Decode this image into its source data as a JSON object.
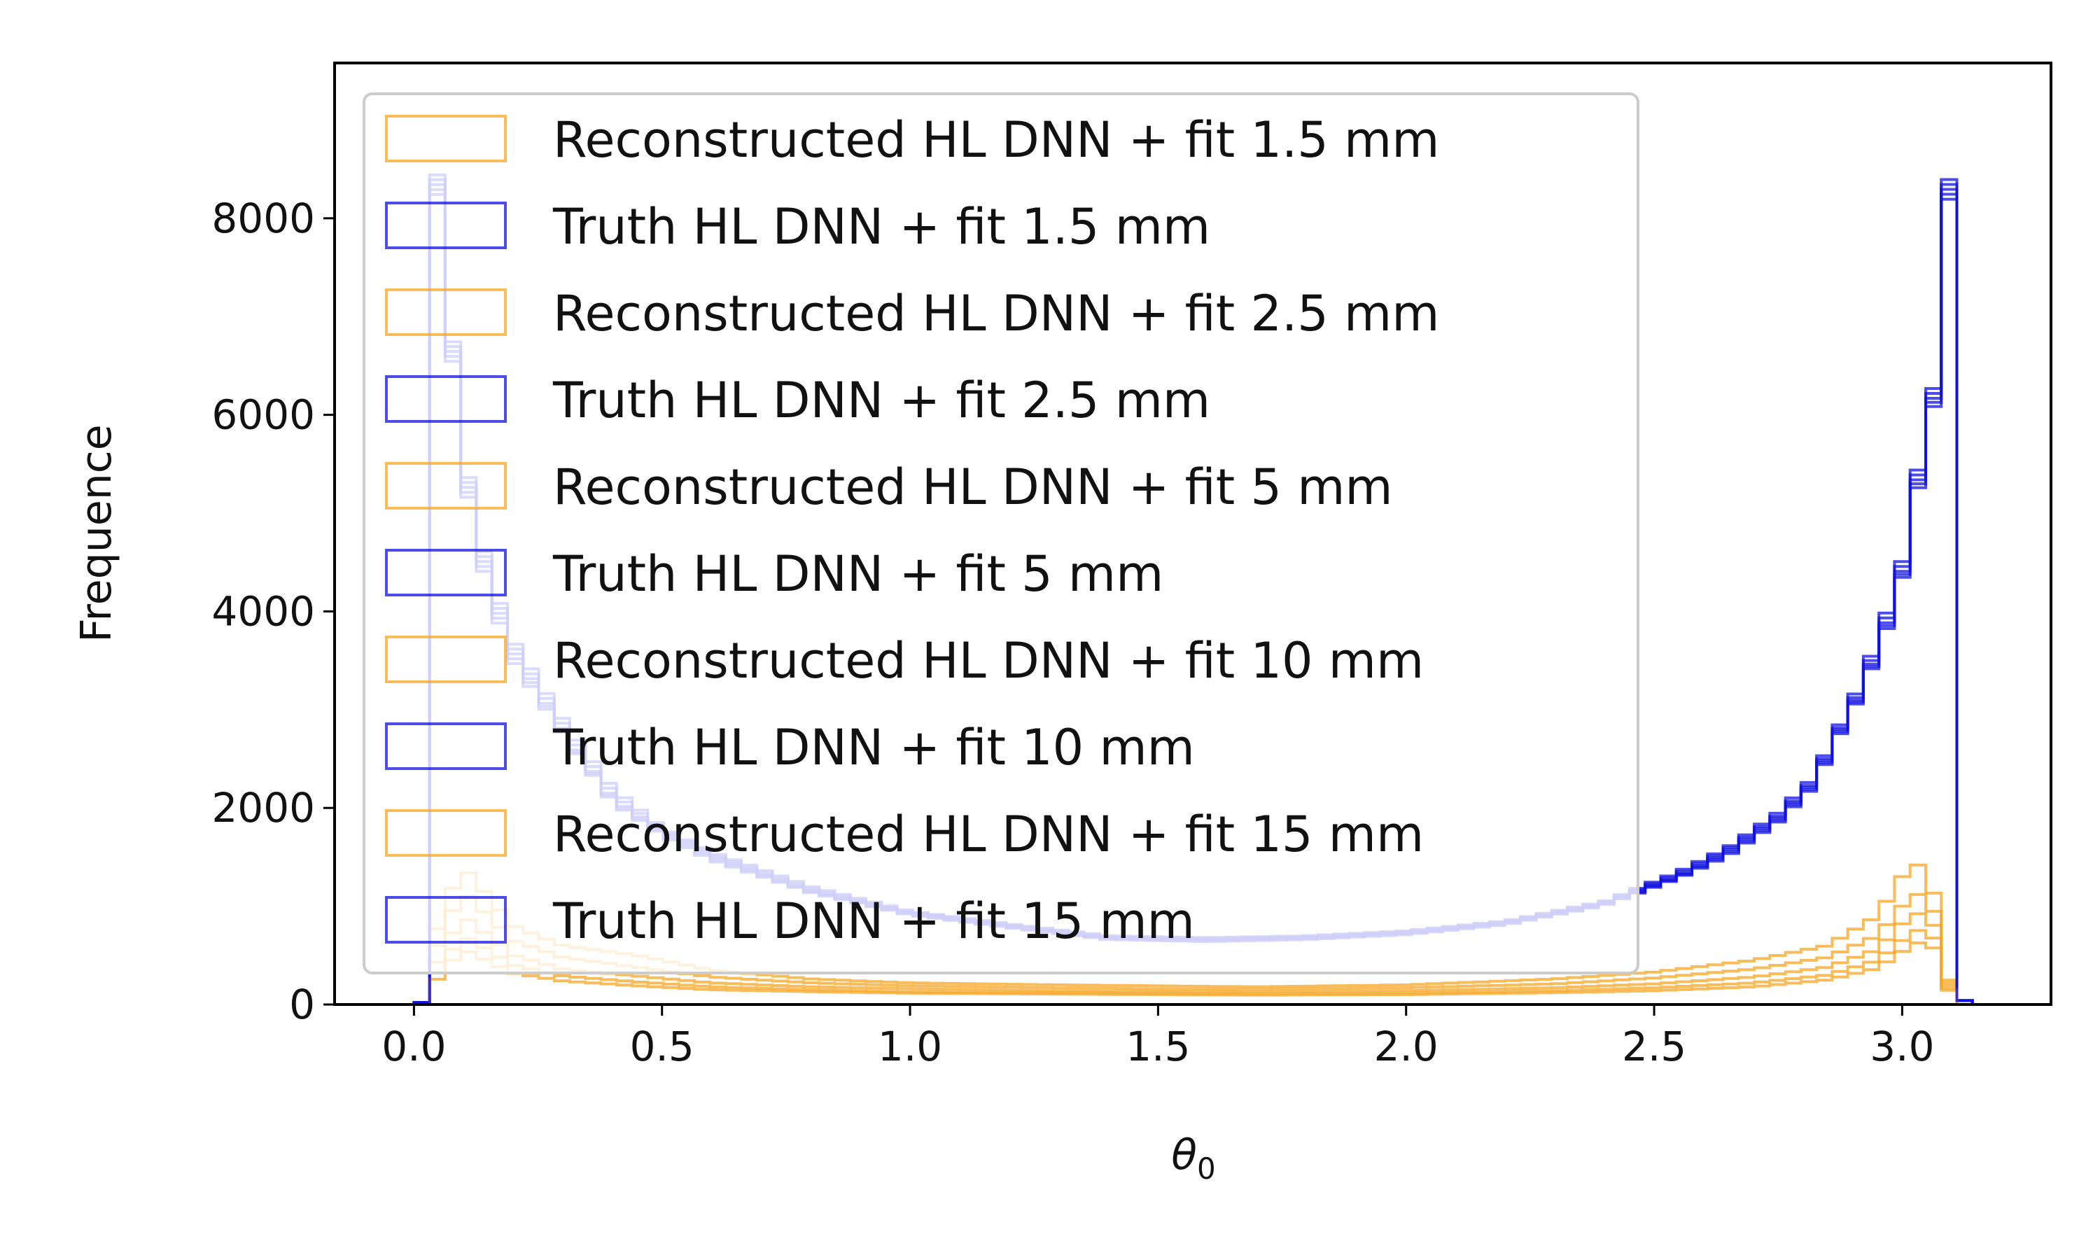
{
  "chart_data": {
    "type": "histogram",
    "title": "",
    "xlabel": "θ",
    "xlabel_sub": "0",
    "ylabel": "Frequence",
    "xlim": [
      -0.16,
      3.3
    ],
    "ylim": [
      0,
      9580
    ],
    "xticks": [
      "0.0",
      "0.5",
      "1.0",
      "1.5",
      "2.0",
      "2.5",
      "3.0"
    ],
    "yticks": [
      "0",
      "2000",
      "4000",
      "6000",
      "8000"
    ],
    "grid": false,
    "legend_position": "upper-left",
    "bin_edges_range": [
      0.0,
      3.1416
    ],
    "bin_count": 100,
    "colors": {
      "reconstructed": "#f5a623",
      "truth": "#1010e0"
    },
    "series": [
      {
        "name": "Reconstructed HL DNN + fit 1.5 mm",
        "color": "#f5a623",
        "knots": [
          [
            0.0,
            0
          ],
          [
            0.03,
            0
          ],
          [
            0.05,
            900
          ],
          [
            0.1,
            1400
          ],
          [
            0.2,
            800
          ],
          [
            0.3,
            600
          ],
          [
            0.45,
            500
          ],
          [
            0.6,
            350
          ],
          [
            0.8,
            260
          ],
          [
            1.0,
            220
          ],
          [
            1.3,
            200
          ],
          [
            1.5,
            190
          ],
          [
            1.7,
            180
          ],
          [
            2.0,
            200
          ],
          [
            2.3,
            260
          ],
          [
            2.5,
            330
          ],
          [
            2.7,
            450
          ],
          [
            2.85,
            600
          ],
          [
            2.95,
            900
          ],
          [
            3.0,
            1300
          ],
          [
            3.04,
            1450
          ],
          [
            3.08,
            900
          ],
          [
            3.1,
            0
          ],
          [
            3.1416,
            0
          ]
        ]
      },
      {
        "name": "Truth HL DNN + fit 1.5 mm",
        "color": "#1010e0",
        "knots": [
          [
            0.0,
            20
          ],
          [
            0.03,
            20
          ],
          [
            0.035,
            9100
          ],
          [
            0.07,
            7200
          ],
          [
            0.1,
            5600
          ],
          [
            0.15,
            4400
          ],
          [
            0.2,
            3700
          ],
          [
            0.3,
            2900
          ],
          [
            0.4,
            2200
          ],
          [
            0.5,
            1800
          ],
          [
            0.6,
            1550
          ],
          [
            0.8,
            1200
          ],
          [
            1.0,
            950
          ],
          [
            1.2,
            820
          ],
          [
            1.4,
            700
          ],
          [
            1.6,
            680
          ],
          [
            1.8,
            700
          ],
          [
            2.0,
            750
          ],
          [
            2.2,
            850
          ],
          [
            2.4,
            1050
          ],
          [
            2.55,
            1350
          ],
          [
            2.65,
            1600
          ],
          [
            2.75,
            1950
          ],
          [
            2.82,
            2300
          ],
          [
            2.88,
            2900
          ],
          [
            2.92,
            3300
          ],
          [
            2.97,
            4000
          ],
          [
            3.0,
            4500
          ],
          [
            3.03,
            5400
          ],
          [
            3.06,
            6100
          ],
          [
            3.08,
            7200
          ],
          [
            3.1,
            8850
          ],
          [
            3.11,
            40
          ],
          [
            3.1416,
            40
          ]
        ]
      },
      {
        "name": "Reconstructed HL DNN + fit 2.5 mm",
        "color": "#f5a623",
        "knots": [
          [
            0.0,
            0
          ],
          [
            0.03,
            0
          ],
          [
            0.05,
            700
          ],
          [
            0.1,
            1150
          ],
          [
            0.2,
            650
          ],
          [
            0.3,
            480
          ],
          [
            0.45,
            380
          ],
          [
            0.6,
            280
          ],
          [
            0.8,
            220
          ],
          [
            1.0,
            190
          ],
          [
            1.3,
            170
          ],
          [
            1.5,
            160
          ],
          [
            1.7,
            155
          ],
          [
            2.0,
            170
          ],
          [
            2.3,
            210
          ],
          [
            2.5,
            270
          ],
          [
            2.7,
            360
          ],
          [
            2.85,
            480
          ],
          [
            2.95,
            700
          ],
          [
            3.0,
            1000
          ],
          [
            3.04,
            1150
          ],
          [
            3.08,
            800
          ],
          [
            3.1,
            0
          ],
          [
            3.1416,
            0
          ]
        ]
      },
      {
        "name": "Truth HL DNN + fit 2.5 mm",
        "color": "#1010e0",
        "knots": [
          [
            0.0,
            20
          ],
          [
            0.03,
            20
          ],
          [
            0.035,
            9050
          ],
          [
            0.07,
            7150
          ],
          [
            0.1,
            5550
          ],
          [
            0.15,
            4350
          ],
          [
            0.2,
            3650
          ],
          [
            0.3,
            2850
          ],
          [
            0.4,
            2150
          ],
          [
            0.5,
            1780
          ],
          [
            0.6,
            1530
          ],
          [
            0.8,
            1180
          ],
          [
            1.0,
            940
          ],
          [
            1.2,
            810
          ],
          [
            1.4,
            690
          ],
          [
            1.6,
            670
          ],
          [
            1.8,
            690
          ],
          [
            2.0,
            740
          ],
          [
            2.2,
            840
          ],
          [
            2.4,
            1040
          ],
          [
            2.55,
            1330
          ],
          [
            2.65,
            1580
          ],
          [
            2.75,
            1920
          ],
          [
            2.82,
            2270
          ],
          [
            2.88,
            2870
          ],
          [
            2.92,
            3260
          ],
          [
            2.97,
            3950
          ],
          [
            3.0,
            4450
          ],
          [
            3.03,
            5350
          ],
          [
            3.06,
            6050
          ],
          [
            3.08,
            7150
          ],
          [
            3.1,
            8800
          ],
          [
            3.11,
            40
          ],
          [
            3.1416,
            40
          ]
        ]
      },
      {
        "name": "Reconstructed HL DNN + fit 5 mm",
        "color": "#f5a623",
        "knots": [
          [
            0.0,
            0
          ],
          [
            0.03,
            0
          ],
          [
            0.05,
            500
          ],
          [
            0.1,
            900
          ],
          [
            0.2,
            500
          ],
          [
            0.3,
            360
          ],
          [
            0.45,
            290
          ],
          [
            0.6,
            220
          ],
          [
            0.8,
            180
          ],
          [
            1.0,
            160
          ],
          [
            1.3,
            140
          ],
          [
            1.5,
            135
          ],
          [
            1.7,
            130
          ],
          [
            2.0,
            140
          ],
          [
            2.3,
            170
          ],
          [
            2.5,
            210
          ],
          [
            2.7,
            280
          ],
          [
            2.85,
            380
          ],
          [
            2.95,
            560
          ],
          [
            3.0,
            820
          ],
          [
            3.04,
            950
          ],
          [
            3.08,
            700
          ],
          [
            3.1,
            0
          ],
          [
            3.1416,
            0
          ]
        ]
      },
      {
        "name": "Truth HL DNN + fit 5 mm",
        "color": "#1010e0",
        "knots": [
          [
            0.0,
            20
          ],
          [
            0.03,
            20
          ],
          [
            0.035,
            9000
          ],
          [
            0.07,
            7100
          ],
          [
            0.1,
            5500
          ],
          [
            0.15,
            4300
          ],
          [
            0.2,
            3600
          ],
          [
            0.3,
            2800
          ],
          [
            0.4,
            2100
          ],
          [
            0.5,
            1760
          ],
          [
            0.6,
            1510
          ],
          [
            0.8,
            1160
          ],
          [
            1.0,
            930
          ],
          [
            1.2,
            800
          ],
          [
            1.4,
            680
          ],
          [
            1.6,
            660
          ],
          [
            1.8,
            680
          ],
          [
            2.0,
            730
          ],
          [
            2.2,
            830
          ],
          [
            2.4,
            1030
          ],
          [
            2.55,
            1310
          ],
          [
            2.65,
            1560
          ],
          [
            2.75,
            1900
          ],
          [
            2.82,
            2250
          ],
          [
            2.88,
            2850
          ],
          [
            2.92,
            3230
          ],
          [
            2.97,
            3900
          ],
          [
            3.0,
            4400
          ],
          [
            3.03,
            5300
          ],
          [
            3.06,
            6000
          ],
          [
            3.08,
            7100
          ],
          [
            3.1,
            8750
          ],
          [
            3.11,
            40
          ],
          [
            3.1416,
            40
          ]
        ]
      },
      {
        "name": "Reconstructed HL DNN + fit 10 mm",
        "color": "#f5a623",
        "knots": [
          [
            0.0,
            0
          ],
          [
            0.03,
            0
          ],
          [
            0.05,
            380
          ],
          [
            0.1,
            700
          ],
          [
            0.2,
            400
          ],
          [
            0.3,
            290
          ],
          [
            0.45,
            230
          ],
          [
            0.6,
            180
          ],
          [
            0.8,
            150
          ],
          [
            1.0,
            130
          ],
          [
            1.3,
            120
          ],
          [
            1.5,
            115
          ],
          [
            1.7,
            110
          ],
          [
            2.0,
            115
          ],
          [
            2.3,
            140
          ],
          [
            2.5,
            170
          ],
          [
            2.7,
            220
          ],
          [
            2.85,
            300
          ],
          [
            2.95,
            450
          ],
          [
            3.0,
            650
          ],
          [
            3.04,
            780
          ],
          [
            3.08,
            600
          ],
          [
            3.1,
            0
          ],
          [
            3.1416,
            0
          ]
        ]
      },
      {
        "name": "Truth HL DNN + fit 10 mm",
        "color": "#1010e0",
        "knots": [
          [
            0.0,
            20
          ],
          [
            0.03,
            20
          ],
          [
            0.035,
            8950
          ],
          [
            0.07,
            7050
          ],
          [
            0.1,
            5450
          ],
          [
            0.15,
            4250
          ],
          [
            0.2,
            3550
          ],
          [
            0.3,
            2780
          ],
          [
            0.4,
            2080
          ],
          [
            0.5,
            1740
          ],
          [
            0.6,
            1490
          ],
          [
            0.8,
            1150
          ],
          [
            1.0,
            920
          ],
          [
            1.2,
            790
          ],
          [
            1.4,
            670
          ],
          [
            1.6,
            650
          ],
          [
            1.8,
            670
          ],
          [
            2.0,
            720
          ],
          [
            2.2,
            820
          ],
          [
            2.4,
            1020
          ],
          [
            2.55,
            1300
          ],
          [
            2.65,
            1540
          ],
          [
            2.75,
            1880
          ],
          [
            2.82,
            2230
          ],
          [
            2.88,
            2830
          ],
          [
            2.92,
            3210
          ],
          [
            2.97,
            3870
          ],
          [
            3.0,
            4370
          ],
          [
            3.03,
            5260
          ],
          [
            3.06,
            5960
          ],
          [
            3.08,
            7050
          ],
          [
            3.1,
            8700
          ],
          [
            3.11,
            40
          ],
          [
            3.1416,
            40
          ]
        ]
      },
      {
        "name": "Reconstructed HL DNN + fit 15 mm",
        "color": "#f5a623",
        "knots": [
          [
            0.0,
            0
          ],
          [
            0.03,
            0
          ],
          [
            0.05,
            300
          ],
          [
            0.1,
            560
          ],
          [
            0.2,
            320
          ],
          [
            0.3,
            240
          ],
          [
            0.45,
            190
          ],
          [
            0.6,
            150
          ],
          [
            0.8,
            130
          ],
          [
            1.0,
            115
          ],
          [
            1.3,
            105
          ],
          [
            1.5,
            100
          ],
          [
            1.7,
            95
          ],
          [
            2.0,
            100
          ],
          [
            2.3,
            120
          ],
          [
            2.5,
            140
          ],
          [
            2.7,
            180
          ],
          [
            2.85,
            250
          ],
          [
            2.95,
            370
          ],
          [
            3.0,
            540
          ],
          [
            3.04,
            650
          ],
          [
            3.08,
            520
          ],
          [
            3.1,
            0
          ],
          [
            3.1416,
            0
          ]
        ]
      },
      {
        "name": "Truth HL DNN + fit 15 mm",
        "color": "#1010e0",
        "knots": [
          [
            0.0,
            20
          ],
          [
            0.03,
            20
          ],
          [
            0.035,
            8900
          ],
          [
            0.07,
            7000
          ],
          [
            0.1,
            5400
          ],
          [
            0.15,
            4200
          ],
          [
            0.2,
            3500
          ],
          [
            0.3,
            2760
          ],
          [
            0.4,
            2060
          ],
          [
            0.5,
            1720
          ],
          [
            0.6,
            1470
          ],
          [
            0.8,
            1140
          ],
          [
            1.0,
            910
          ],
          [
            1.2,
            780
          ],
          [
            1.4,
            660
          ],
          [
            1.6,
            640
          ],
          [
            1.8,
            660
          ],
          [
            2.0,
            710
          ],
          [
            2.2,
            810
          ],
          [
            2.4,
            1010
          ],
          [
            2.55,
            1290
          ],
          [
            2.65,
            1520
          ],
          [
            2.75,
            1860
          ],
          [
            2.82,
            2210
          ],
          [
            2.88,
            2810
          ],
          [
            2.92,
            3190
          ],
          [
            2.97,
            3840
          ],
          [
            3.0,
            4340
          ],
          [
            3.03,
            5220
          ],
          [
            3.06,
            5920
          ],
          [
            3.08,
            7000
          ],
          [
            3.1,
            8650
          ],
          [
            3.11,
            40
          ],
          [
            3.1416,
            40
          ]
        ]
      }
    ]
  }
}
